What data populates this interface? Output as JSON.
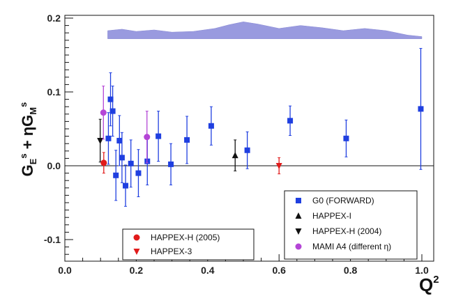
{
  "chart_data": {
    "type": "scatter",
    "title": "",
    "xlabel": "Q",
    "xlabel_sup": "2",
    "ylabel": {
      "parts": [
        "G",
        "E",
        "s",
        " + ηG",
        "M",
        "s"
      ]
    },
    "xlim": [
      0.0,
      1.03
    ],
    "ylim": [
      -0.13,
      0.2
    ],
    "x_ticks": [
      {
        "value": 0.0,
        "label": "0.0"
      },
      {
        "value": 0.2,
        "label": "0.2"
      },
      {
        "value": 0.4,
        "label": "0.4"
      },
      {
        "value": 0.6,
        "label": "0.6"
      },
      {
        "value": 0.8,
        "label": "0.8"
      },
      {
        "value": 1.0,
        "label": "1.0"
      }
    ],
    "y_ticks": [
      {
        "value": -0.1,
        "label": "-0.1"
      },
      {
        "value": 0.0,
        "label": "0.0"
      },
      {
        "value": 0.1,
        "label": "0.1"
      },
      {
        "value": 0.2,
        "label": "0.2"
      }
    ],
    "zero_line": true,
    "grid": false,
    "band": {
      "color": "#8f90dc",
      "base": 0.172,
      "top": [
        [
          0.12,
          0.183
        ],
        [
          0.16,
          0.185
        ],
        [
          0.2,
          0.182
        ],
        [
          0.25,
          0.184
        ],
        [
          0.3,
          0.181
        ],
        [
          0.36,
          0.182
        ],
        [
          0.42,
          0.186
        ],
        [
          0.46,
          0.191
        ],
        [
          0.5,
          0.195
        ],
        [
          0.54,
          0.192
        ],
        [
          0.6,
          0.186
        ],
        [
          0.66,
          0.19
        ],
        [
          0.72,
          0.187
        ],
        [
          0.78,
          0.183
        ],
        [
          0.84,
          0.186
        ],
        [
          0.9,
          0.183
        ],
        [
          0.96,
          0.177
        ],
        [
          1.0,
          0.175
        ]
      ]
    },
    "series": [
      {
        "name": "G0 (FORWARD)",
        "marker": "square",
        "color": "#1f3fe0",
        "points": [
          {
            "x": 0.122,
            "y": 0.037,
            "lo": 0.002,
            "hi": 0.072
          },
          {
            "x": 0.128,
            "y": 0.09,
            "lo": 0.054,
            "hi": 0.126
          },
          {
            "x": 0.134,
            "y": 0.074,
            "lo": 0.04,
            "hi": 0.108
          },
          {
            "x": 0.143,
            "y": -0.013,
            "lo": -0.047,
            "hi": 0.021
          },
          {
            "x": 0.153,
            "y": 0.034,
            "lo": 0.0,
            "hi": 0.068
          },
          {
            "x": 0.16,
            "y": 0.011,
            "lo": -0.023,
            "hi": 0.045
          },
          {
            "x": 0.17,
            "y": -0.027,
            "lo": -0.055,
            "hi": 0.001
          },
          {
            "x": 0.185,
            "y": 0.003,
            "lo": -0.029,
            "hi": 0.035
          },
          {
            "x": 0.206,
            "y": -0.01,
            "lo": -0.042,
            "hi": 0.022
          },
          {
            "x": 0.231,
            "y": 0.006,
            "lo": -0.026,
            "hi": 0.038
          },
          {
            "x": 0.262,
            "y": 0.04,
            "lo": 0.006,
            "hi": 0.074
          },
          {
            "x": 0.297,
            "y": 0.002,
            "lo": -0.026,
            "hi": 0.03
          },
          {
            "x": 0.342,
            "y": 0.035,
            "lo": 0.003,
            "hi": 0.067
          },
          {
            "x": 0.41,
            "y": 0.054,
            "lo": 0.028,
            "hi": 0.08
          },
          {
            "x": 0.511,
            "y": 0.021,
            "lo": -0.004,
            "hi": 0.046
          },
          {
            "x": 0.631,
            "y": 0.061,
            "lo": 0.041,
            "hi": 0.081
          },
          {
            "x": 0.788,
            "y": 0.037,
            "lo": 0.012,
            "hi": 0.062
          },
          {
            "x": 0.997,
            "y": 0.077,
            "lo": -0.005,
            "hi": 0.159
          }
        ]
      },
      {
        "name": "HAPPEX-I",
        "marker": "triangle-up",
        "color": "#111111",
        "points": [
          {
            "x": 0.477,
            "y": 0.014,
            "lo": -0.007,
            "hi": 0.035
          }
        ]
      },
      {
        "name": "HAPPEX-H (2004)",
        "marker": "triangle-down",
        "color": "#111111",
        "points": [
          {
            "x": 0.099,
            "y": 0.034,
            "lo": 0.005,
            "hi": 0.063
          }
        ]
      },
      {
        "name": "MAMI A4 (different η)",
        "marker": "circle",
        "color": "#b445d6",
        "points": [
          {
            "x": 0.108,
            "y": 0.072,
            "lo": 0.036,
            "hi": 0.108
          },
          {
            "x": 0.23,
            "y": 0.039,
            "lo": 0.004,
            "hi": 0.074
          }
        ]
      },
      {
        "name": "HAPPEX-H (2005)",
        "marker": "circle",
        "color": "#e11b1b",
        "points": [
          {
            "x": 0.109,
            "y": 0.004,
            "lo": -0.01,
            "hi": 0.018
          }
        ]
      },
      {
        "name": "HAPPEX-3",
        "marker": "triangle-down",
        "color": "#e11b1b",
        "points": [
          {
            "x": 0.6,
            "y": 0.0,
            "lo": -0.011,
            "hi": 0.011
          }
        ]
      }
    ],
    "legends": [
      {
        "placement": "bottom-right",
        "entries": [
          "G0 (FORWARD)",
          "HAPPEX-I",
          "HAPPEX-H (2004)",
          "MAMI A4 (different η)"
        ]
      },
      {
        "placement": "bottom-left",
        "entries": [
          "HAPPEX-H (2005)",
          "HAPPEX-3"
        ]
      }
    ]
  }
}
